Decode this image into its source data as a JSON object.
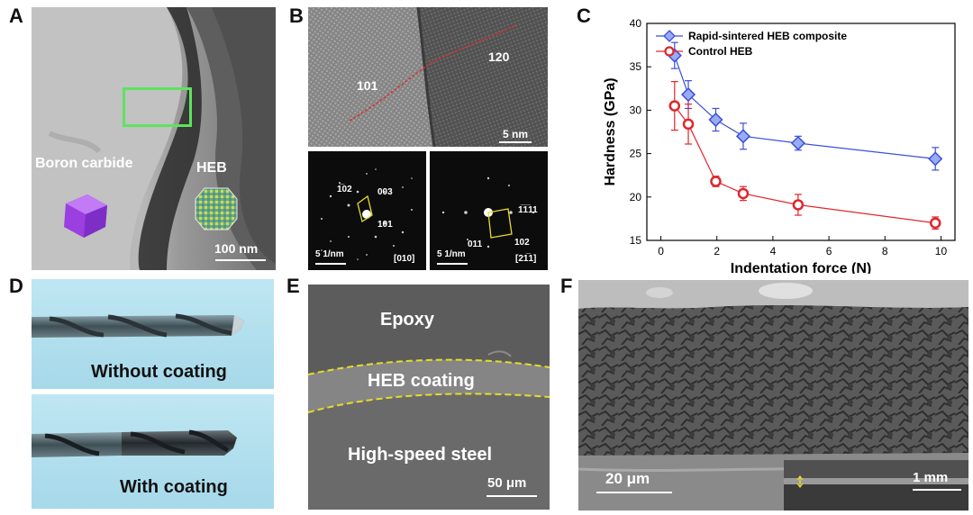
{
  "labels": {
    "a": "A",
    "b": "B",
    "c": "C",
    "d": "D",
    "e": "E",
    "f": "F"
  },
  "panel_a": {
    "boron_carbide": "Boron carbide",
    "heb": "HEB",
    "scale": "100 nm"
  },
  "panel_b": {
    "hrtem": {
      "left_plane": "101",
      "right_plane": "120",
      "scale": "5 nm"
    },
    "saed_left": {
      "spot_1": "1̅02",
      "spot_2": "003",
      "spot_3": "101",
      "scale": "5 1/nm",
      "zone": "[010]"
    },
    "saed_right": {
      "spot_1": "1̅1̅11",
      "spot_2": "011",
      "spot_3": "102",
      "scale": "5 1/nm",
      "zone": "[21̅1]"
    }
  },
  "panel_d": {
    "top": "Without coating",
    "bottom": "With coating"
  },
  "panel_e": {
    "epoxy": "Epoxy",
    "coating": "HEB coating",
    "steel": "High-speed steel",
    "scale": "50 μm"
  },
  "panel_f": {
    "scale_main": "20 μm",
    "scale_inset": "1 mm"
  },
  "colors": {
    "composite": "#3b4fd8",
    "composite_marker": "#9aaaf5",
    "control": "#e0262b",
    "coating_border": "#e6dc2a",
    "roi_box": "#5ee35e"
  },
  "chart_data": {
    "type": "line",
    "xlabel": "Indentation force (N)",
    "ylabel": "Hardness (GPa)",
    "xlim": [
      -0.5,
      10.5
    ],
    "ylim": [
      15,
      40
    ],
    "xticks": [
      0,
      2,
      4,
      6,
      8,
      10
    ],
    "yticks": [
      15,
      20,
      25,
      30,
      35,
      40
    ],
    "legend_position": "top-right",
    "series": [
      {
        "name": "Rapid-sintered HEB composite",
        "marker": "diamond",
        "x": [
          0.49,
          0.98,
          1.96,
          2.94,
          4.9,
          9.8
        ],
        "y": [
          36.3,
          31.8,
          28.9,
          27.0,
          26.2,
          24.4
        ],
        "err": [
          1.5,
          1.6,
          1.3,
          1.5,
          0.8,
          1.3
        ]
      },
      {
        "name": "Control HEB",
        "marker": "circle",
        "x": [
          0.49,
          0.98,
          1.96,
          2.94,
          4.9,
          9.8
        ],
        "y": [
          30.5,
          28.4,
          21.8,
          20.4,
          19.1,
          17.0
        ],
        "err": [
          2.8,
          2.3,
          0.6,
          0.8,
          1.2,
          0.7
        ]
      }
    ]
  }
}
